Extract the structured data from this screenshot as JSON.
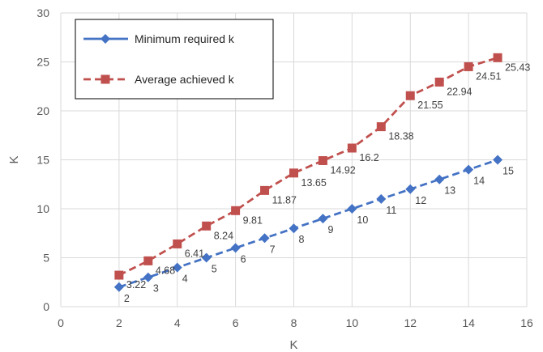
{
  "chart_data": {
    "type": "line",
    "title": "",
    "xlabel": "K",
    "ylabel": "K",
    "xlim": [
      0,
      16
    ],
    "ylim": [
      0,
      30
    ],
    "xticks": [
      0,
      2,
      4,
      6,
      8,
      10,
      12,
      14,
      16
    ],
    "yticks": [
      0,
      5,
      10,
      15,
      20,
      25,
      30
    ],
    "grid": true,
    "legend_position": "top-left",
    "x": [
      2,
      3,
      4,
      5,
      6,
      7,
      8,
      9,
      10,
      11,
      12,
      13,
      14,
      15
    ],
    "series": [
      {
        "name": "Minimum required k",
        "color": "#4472C4",
        "line_style": "dashed",
        "marker": "diamond",
        "values": [
          2,
          3,
          4,
          5,
          6,
          7,
          8,
          9,
          10,
          11,
          12,
          13,
          14,
          15
        ],
        "labels": [
          "2",
          "3",
          "4",
          "5",
          "6",
          "7",
          "8",
          "9",
          "10",
          "11",
          "12",
          "13",
          "14",
          "15"
        ]
      },
      {
        "name": "Average achieved k",
        "color": "#C0504D",
        "line_style": "dashed",
        "marker": "square",
        "values": [
          3.22,
          4.68,
          6.41,
          8.24,
          9.81,
          11.87,
          13.65,
          14.92,
          16.2,
          18.38,
          21.55,
          22.94,
          24.51,
          25.43
        ],
        "labels": [
          "3.22",
          "4.68",
          "6.41",
          "8.24",
          "9.81",
          "11.87",
          "13.65",
          "14.92",
          "16.2",
          "18.38",
          "21.55",
          "22.94",
          "24.51",
          "25.43"
        ]
      }
    ]
  }
}
